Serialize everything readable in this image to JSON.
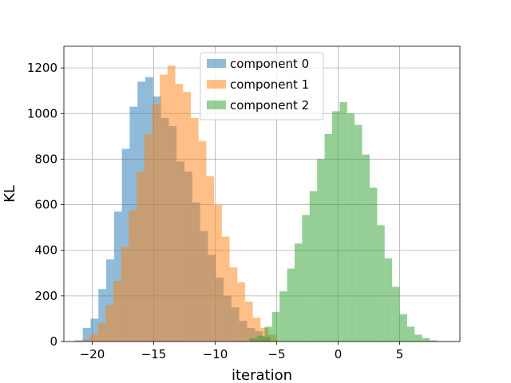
{
  "chart_data": {
    "type": "histogram",
    "title": "",
    "xlabel": "iteration",
    "ylabel": "KL",
    "xlim": [
      -22.3,
      9.9
    ],
    "ylim": [
      0,
      1295
    ],
    "xticks": [
      -20,
      -15,
      -10,
      -5,
      0,
      5
    ],
    "yticks": [
      0,
      200,
      400,
      600,
      800,
      1000,
      1200
    ],
    "xtick_labels": [
      "−20",
      "−15",
      "−10",
      "−5",
      "0",
      "5"
    ],
    "ytick_labels": [
      "0",
      "200",
      "400",
      "600",
      "800",
      "1000",
      "1200"
    ],
    "grid": true,
    "legend_position": "top-center",
    "series": [
      {
        "name": "component 0",
        "color": "#1f77b4",
        "alpha": 0.5,
        "bin_edges": [
          -21.4,
          -20.764,
          -20.128,
          -19.492,
          -18.856,
          -18.22,
          -17.584,
          -16.948,
          -16.312,
          -15.676,
          -15.04,
          -14.404,
          -13.768,
          -13.132,
          -12.496,
          -11.86,
          -11.224,
          -10.588,
          -9.952,
          -9.316,
          -8.68,
          -8.044,
          -7.408,
          -6.772,
          -6.136,
          -5.5
        ],
        "values": [
          5,
          60,
          100,
          230,
          360,
          570,
          845,
          1030,
          1140,
          1160,
          1075,
          980,
          945,
          790,
          745,
          610,
          485,
          380,
          280,
          200,
          150,
          90,
          60,
          45,
          20
        ]
      },
      {
        "name": "component 1",
        "color": "#ff7f0e",
        "alpha": 0.5,
        "bin_edges": [
          -20.8,
          -20.17,
          -19.54,
          -18.91,
          -18.28,
          -17.65,
          -17.02,
          -16.39,
          -15.76,
          -15.13,
          -14.5,
          -13.87,
          -13.24,
          -12.61,
          -11.98,
          -11.35,
          -10.72,
          -10.09,
          -9.46,
          -8.83,
          -8.2,
          -7.57,
          -6.94,
          -6.31,
          -5.68,
          -5.05
        ],
        "values": [
          10,
          30,
          80,
          160,
          265,
          415,
          575,
          745,
          910,
          1040,
          1170,
          1210,
          1130,
          1095,
          980,
          880,
          725,
          600,
          460,
          325,
          260,
          175,
          105,
          60,
          30
        ]
      },
      {
        "name": "component 2",
        "color": "#2ca02c",
        "alpha": 0.5,
        "bin_edges": [
          -7.2,
          -6.59,
          -5.98,
          -5.37,
          -4.76,
          -4.15,
          -3.54,
          -2.93,
          -2.32,
          -1.71,
          -1.1,
          -0.49,
          0.12,
          0.73,
          1.34,
          1.95,
          2.56,
          3.17,
          3.78,
          4.39,
          5.0,
          5.61,
          6.22,
          6.83,
          7.44,
          8.05
        ],
        "values": [
          15,
          25,
          65,
          130,
          220,
          320,
          430,
          555,
          660,
          800,
          910,
          1010,
          1050,
          1000,
          950,
          820,
          675,
          510,
          365,
          240,
          120,
          65,
          30,
          15,
          5
        ]
      }
    ]
  }
}
